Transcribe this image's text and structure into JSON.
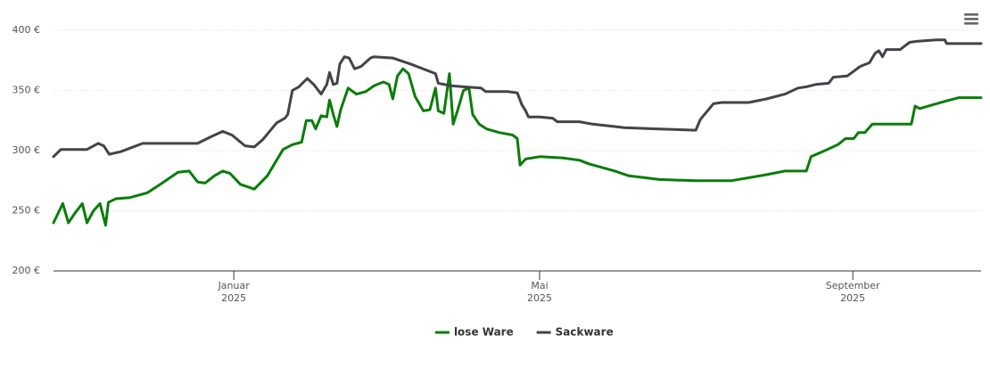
{
  "chart_data": {
    "type": "line",
    "xlim": [
      2024.806,
      2025.804
    ],
    "xticks": [
      {
        "value": 2025.0,
        "label": [
          "Januar",
          "2025"
        ]
      },
      {
        "value": 2025.329,
        "label": [
          "Mai",
          "2025"
        ]
      },
      {
        "value": 2025.666,
        "label": [
          "September",
          "2025"
        ]
      }
    ],
    "ylim": [
      200,
      400
    ],
    "yticks": [
      {
        "value": 200,
        "label": "200 €"
      },
      {
        "value": 250,
        "label": "250 €"
      },
      {
        "value": 300,
        "label": "300 €"
      },
      {
        "value": 350,
        "label": "350 €"
      },
      {
        "value": 400,
        "label": "400 €"
      }
    ],
    "grid": true,
    "legend": "bottom",
    "series": [
      {
        "name": "lose Ware",
        "color": "#0a7d0a",
        "x": [
          2024.806,
          2024.816,
          2024.822,
          2024.829,
          2024.837,
          2024.842,
          2024.849,
          2024.856,
          2024.862,
          2024.865,
          2024.873,
          2024.888,
          2024.907,
          2024.921,
          2024.94,
          2024.952,
          2024.961,
          2024.969,
          2024.979,
          2024.988,
          2024.996,
          2025.007,
          2025.022,
          2025.036,
          2025.046,
          2025.053,
          2025.063,
          2025.073,
          2025.078,
          2025.084,
          2025.088,
          2025.094,
          2025.1,
          2025.103,
          2025.107,
          2025.111,
          2025.115,
          2025.123,
          2025.132,
          2025.142,
          2025.151,
          2025.161,
          2025.167,
          2025.171,
          2025.176,
          2025.182,
          2025.188,
          2025.195,
          2025.204,
          2025.211,
          2025.217,
          2025.22,
          2025.226,
          2025.232,
          2025.236,
          2025.241,
          2025.247,
          2025.253,
          2025.257,
          2025.264,
          2025.272,
          2025.286,
          2025.3,
          2025.305,
          2025.308,
          2025.314,
          2025.329,
          2025.353,
          2025.372,
          2025.382,
          2025.41,
          2025.425,
          2025.458,
          2025.497,
          2025.535,
          2025.573,
          2025.593,
          2025.616,
          2025.621,
          2025.636,
          2025.65,
          2025.658,
          2025.667,
          2025.672,
          2025.679,
          2025.687,
          2025.708,
          2025.729,
          2025.733,
          2025.738,
          2025.765,
          2025.78,
          2025.804
        ],
        "values": [
          240,
          256,
          240,
          248,
          256,
          240,
          250,
          256,
          238,
          257,
          260,
          261,
          265,
          272,
          282,
          283,
          274,
          273,
          279,
          283,
          281,
          272,
          268,
          279,
          292,
          301,
          305,
          307,
          325,
          325,
          318,
          329,
          328,
          342,
          330,
          320,
          334,
          352,
          347,
          349,
          354,
          357,
          355,
          343,
          362,
          368,
          364,
          345,
          333,
          334,
          352,
          333,
          331,
          364,
          322,
          334,
          350,
          352,
          330,
          322,
          318,
          315,
          313,
          310,
          288,
          293,
          295,
          294,
          292,
          289,
          283,
          279,
          276,
          275,
          275,
          280,
          283,
          283,
          295,
          300,
          305,
          310,
          310,
          315,
          315,
          322,
          322,
          322,
          337,
          335,
          341,
          344,
          344
        ]
      },
      {
        "name": "Sackware",
        "color": "#434348",
        "x": [
          2024.806,
          2024.814,
          2024.842,
          2024.854,
          2024.86,
          2024.866,
          2024.878,
          2024.902,
          2024.931,
          2024.961,
          2024.974,
          2024.988,
          2024.998,
          2025.012,
          2025.022,
          2025.031,
          2025.046,
          2025.055,
          2025.058,
          2025.063,
          2025.07,
          2025.079,
          2025.086,
          2025.094,
          2025.1,
          2025.103,
          2025.107,
          2025.111,
          2025.114,
          2025.119,
          2025.124,
          2025.13,
          2025.137,
          2025.147,
          2025.151,
          2025.171,
          2025.19,
          2025.217,
          2025.22,
          2025.233,
          2025.247,
          2025.266,
          2025.271,
          2025.295,
          2025.305,
          2025.31,
          2025.314,
          2025.317,
          2025.329,
          2025.343,
          2025.348,
          2025.372,
          2025.386,
          2025.41,
          2025.42,
          2025.458,
          2025.497,
          2025.502,
          2025.516,
          2025.525,
          2025.554,
          2025.573,
          2025.593,
          2025.607,
          2025.616,
          2025.626,
          2025.64,
          2025.645,
          2025.66,
          2025.674,
          2025.684,
          2025.69,
          2025.694,
          2025.698,
          2025.702,
          2025.717,
          2025.727,
          2025.736,
          2025.756,
          2025.765,
          2025.767,
          2025.804
        ],
        "values": [
          295,
          301,
          301,
          306,
          304,
          297,
          299,
          306,
          306,
          306,
          311,
          316,
          313,
          304,
          303,
          309,
          323,
          327,
          330,
          350,
          353,
          360,
          355,
          347,
          355,
          365,
          355,
          356,
          372,
          378,
          377,
          368,
          370,
          377,
          378,
          377,
          372,
          364,
          356,
          354,
          353,
          352,
          349,
          349,
          348,
          338,
          333,
          328,
          328,
          327,
          324,
          324,
          322,
          320,
          319,
          318,
          317,
          326,
          339,
          340,
          340,
          343,
          347,
          352,
          353,
          355,
          356,
          361,
          362,
          370,
          373,
          381,
          383,
          378,
          384,
          384,
          390,
          391,
          392,
          392,
          389,
          389
        ]
      }
    ]
  }
}
